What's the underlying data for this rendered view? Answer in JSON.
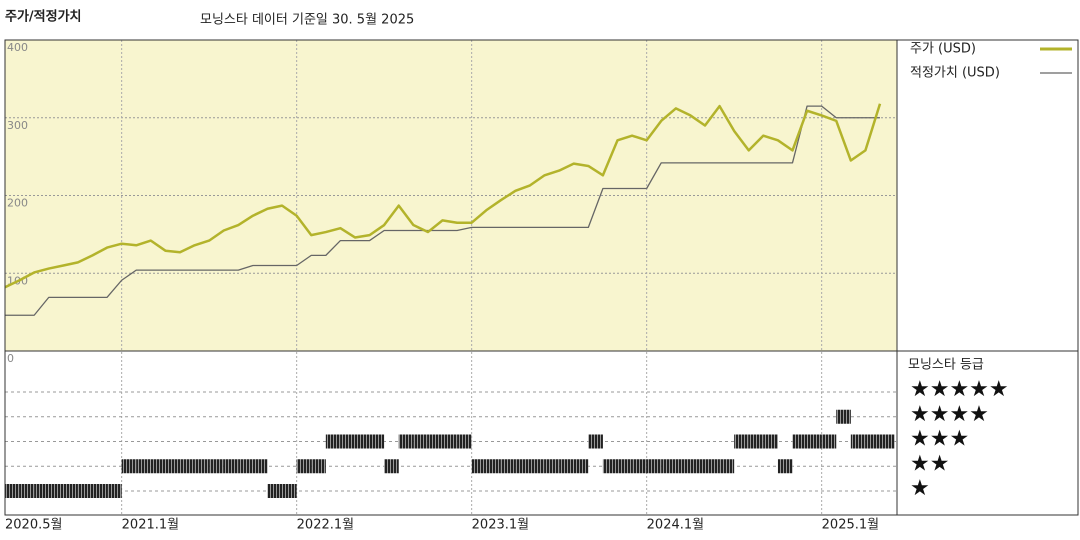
{
  "chart_data": {
    "type": "line",
    "title": "주가/적정가치",
    "subtitle": "모닝스타 데이터 기준일 30. 5월 2025",
    "x": [
      "2020-05",
      "2020-06",
      "2020-07",
      "2020-08",
      "2020-09",
      "2020-10",
      "2020-11",
      "2020-12",
      "2021-01",
      "2021-02",
      "2021-03",
      "2021-04",
      "2021-05",
      "2021-06",
      "2021-07",
      "2021-08",
      "2021-09",
      "2021-10",
      "2021-11",
      "2021-12",
      "2022-01",
      "2022-02",
      "2022-03",
      "2022-04",
      "2022-05",
      "2022-06",
      "2022-07",
      "2022-08",
      "2022-09",
      "2022-10",
      "2022-11",
      "2022-12",
      "2023-01",
      "2023-02",
      "2023-03",
      "2023-04",
      "2023-05",
      "2023-06",
      "2023-07",
      "2023-08",
      "2023-09",
      "2023-10",
      "2023-11",
      "2023-12",
      "2024-01",
      "2024-02",
      "2024-03",
      "2024-04",
      "2024-05",
      "2024-06",
      "2024-07",
      "2024-08",
      "2024-09",
      "2024-10",
      "2024-11",
      "2024-12",
      "2025-01",
      "2025-02",
      "2025-03",
      "2025-04",
      "2025-05"
    ],
    "series": [
      {
        "name": "주가 (USD)",
        "color": "#b3b32b",
        "values": [
          82,
          91,
          101,
          106,
          110,
          114,
          123,
          133,
          138,
          136,
          142,
          129,
          127,
          136,
          142,
          155,
          162,
          174,
          183,
          187,
          174,
          149,
          153,
          158,
          146,
          149,
          162,
          187,
          162,
          153,
          168,
          165,
          165,
          181,
          194,
          206,
          213,
          226,
          232,
          241,
          238,
          226,
          271,
          277,
          271,
          296,
          312,
          303,
          290,
          315,
          283,
          258,
          277,
          271,
          258,
          309,
          303,
          296,
          245,
          258,
          318
        ]
      },
      {
        "name": "적정가치 (USD)",
        "color": "#666666",
        "values": [
          46,
          46,
          46,
          69,
          69,
          69,
          69,
          69,
          91,
          104,
          104,
          104,
          104,
          104,
          104,
          104,
          104,
          110,
          110,
          110,
          110,
          123,
          123,
          142,
          142,
          142,
          155,
          155,
          155,
          155,
          155,
          155,
          159,
          159,
          159,
          159,
          159,
          159,
          159,
          159,
          159,
          209,
          209,
          209,
          209,
          242,
          242,
          242,
          242,
          242,
          242,
          242,
          242,
          242,
          242,
          315,
          315,
          300,
          300,
          300,
          300
        ]
      }
    ],
    "ylim": [
      0,
      400
    ],
    "yticks": [
      0,
      100,
      200,
      300,
      400
    ],
    "xticks": [
      {
        "value": "2020-05",
        "label": "2020.5월"
      },
      {
        "value": "2021-01",
        "label": "2021.1월"
      },
      {
        "value": "2022-01",
        "label": "2022.1월"
      },
      {
        "value": "2023-01",
        "label": "2023.1월"
      },
      {
        "value": "2024-01",
        "label": "2024.1월"
      },
      {
        "value": "2025-01",
        "label": "2025.1월"
      }
    ],
    "grid": true,
    "rating": {
      "title": "모닝스타 등급",
      "levels": [
        "★",
        "★★",
        "★★★",
        "★★★★",
        "★★★★★"
      ],
      "values": [
        1,
        1,
        1,
        1,
        1,
        1,
        1,
        1,
        2,
        2,
        2,
        2,
        2,
        2,
        2,
        2,
        2,
        2,
        1,
        1,
        2,
        2,
        3,
        3,
        3,
        3,
        2,
        3,
        3,
        3,
        3,
        3,
        2,
        2,
        2,
        2,
        2,
        2,
        2,
        2,
        3,
        2,
        2,
        2,
        2,
        2,
        2,
        2,
        2,
        2,
        3,
        3,
        3,
        2,
        3,
        3,
        3,
        4,
        3,
        3,
        3
      ]
    }
  }
}
